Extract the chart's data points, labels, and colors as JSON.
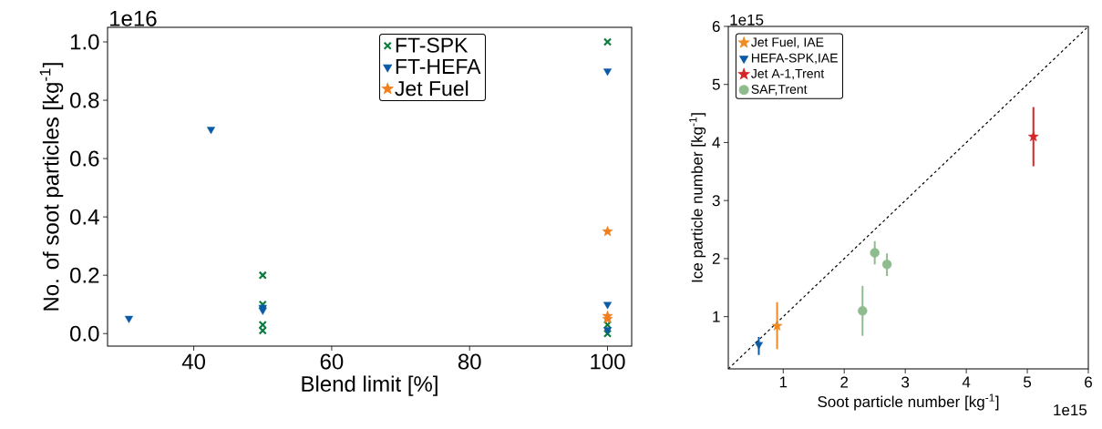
{
  "chart_data": [
    {
      "type": "scatter",
      "xlabel": "Blend limit [%]",
      "ylabel": "No. of soot particles [kg$^{-1}$]",
      "annotations": [
        "1e16"
      ],
      "legend": "top",
      "grid": false,
      "xlim": [
        27.5,
        103.5
      ],
      "ylim": [
        -0.043,
        1.05
      ],
      "xticks": [
        40,
        60,
        80,
        100
      ],
      "yticks": [
        {
          "value": 0,
          "label": "0.0"
        },
        {
          "value": 0.2,
          "label": "0.2"
        },
        {
          "value": 0.4,
          "label": "0.4"
        },
        {
          "value": 0.6,
          "label": "0.6"
        },
        {
          "value": 0.8,
          "label": "0.8"
        },
        {
          "value": 1.0,
          "label": "1.0"
        }
      ],
      "series": [
        {
          "name": "FT-SPK",
          "color": "#0a7d3e",
          "marker": "cross",
          "x": [
            50,
            50,
            50,
            50,
            100,
            100,
            100
          ],
          "values": [
            0.2,
            0.1,
            0.03,
            0.01,
            1.0,
            0.03,
            0.0
          ]
        },
        {
          "name": "FT-HEFA",
          "color": "#0a5aa8",
          "marker": "triangle",
          "x": [
            30.6,
            42.5,
            50,
            50,
            100,
            100,
            100
          ],
          "values": [
            0.052,
            0.7,
            0.09,
            0.08,
            0.9,
            0.1,
            0.013
          ]
        },
        {
          "name": "Jet Fuel",
          "color": "#f07f1e",
          "marker": "star",
          "x": [
            100,
            100,
            100
          ],
          "values": [
            0.35,
            0.06,
            0.05
          ]
        }
      ]
    },
    {
      "type": "scatter",
      "xlabel": "Soot particle number [kg$^{-1}$]",
      "ylabel": "Ice particle number [kg$^{-1}$]",
      "annotations": [
        "1e15",
        "1e15"
      ],
      "legend": "top left",
      "grid": false,
      "xlim": [
        0.1,
        6
      ],
      "ylim": [
        0.1,
        6
      ],
      "xticks": [
        1,
        2,
        3,
        4,
        5,
        6
      ],
      "yticks": [
        1,
        2,
        3,
        4,
        5,
        6
      ],
      "series": [
        {
          "type": "line",
          "color": "#000000",
          "line_style": "dashed",
          "marker": "none",
          "x": [
            0.1,
            6
          ],
          "values": [
            0.1,
            6
          ]
        },
        {
          "name": "Jet Fuel, IAE",
          "color": "#f08a24",
          "marker": "star",
          "x": [
            0.9
          ],
          "values": [
            0.84
          ],
          "errors": [
            [
              0.44,
              1.25
            ]
          ]
        },
        {
          "name": "HEFA-SPK,IAE",
          "color": "#0a5aa8",
          "marker": "triangle",
          "x": [
            0.6
          ],
          "values": [
            0.52
          ],
          "errors": [
            [
              0.34,
              0.65
            ]
          ]
        },
        {
          "name": "Jet A-1,Trent",
          "color": "#d62728",
          "marker": "star",
          "x": [
            5.1
          ],
          "values": [
            4.1
          ],
          "errors": [
            [
              3.59,
              4.61
            ]
          ]
        },
        {
          "name": "SAF,Trent",
          "color": "#8fbc8f",
          "marker": "circle",
          "x": [
            2.3,
            2.5,
            2.7
          ],
          "values": [
            1.1,
            2.1,
            1.9
          ],
          "errors": [
            [
              0.67,
              1.53
            ],
            [
              1.9,
              2.3
            ],
            [
              1.7,
              2.09
            ]
          ]
        }
      ]
    }
  ]
}
